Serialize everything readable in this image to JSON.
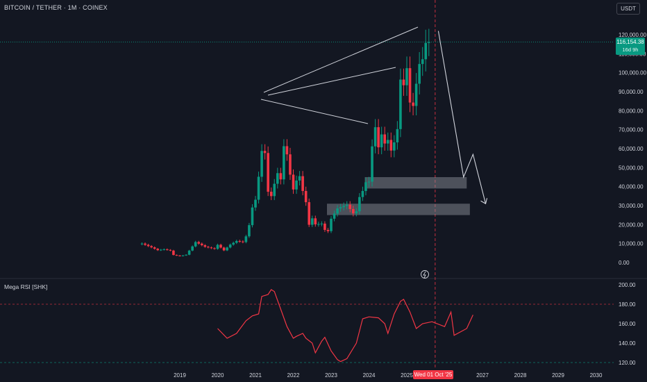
{
  "header": {
    "ticker": "BITCOIN / TETHER · 1M · COINEX",
    "currency": "USDT"
  },
  "price_tag": {
    "price": "116,154.38",
    "countdown": "16d 9h",
    "color": "#089981"
  },
  "crosshair_date": "Wed 01 Oct '25",
  "rsi_panel_title": "Mega RSI [SHK]",
  "colors": {
    "background": "#131722",
    "up": "#089981",
    "down": "#f23645",
    "rsi_line": "#f23645",
    "zone": "#9598a1",
    "drawing": "#d1d4dc"
  },
  "chart_data": [
    {
      "type": "candlestick",
      "title": "BITCOIN / TETHER · 1M · COINEX",
      "interval": "1M",
      "y_ticks": [
        0,
        10000,
        20000,
        30000,
        40000,
        50000,
        60000,
        70000,
        80000,
        90000,
        100000,
        110000,
        120000
      ],
      "y_tick_labels": [
        "0.00",
        "10,000.00",
        "20,000.00",
        "30,000.00",
        "40,000.00",
        "50,000.00",
        "60,000.00",
        "70,000.00",
        "80,000.00",
        "90,000.00",
        "100,000.00",
        "110,000.00",
        "120,000.00"
      ],
      "ylim": [
        0,
        130000
      ],
      "x_tick_labels": [
        "2019",
        "2020",
        "2021",
        "2022",
        "2023",
        "2024",
        "2025",
        "2027",
        "2028",
        "2029",
        "2030"
      ],
      "current_price": 116154.38,
      "anchors": [
        [
          "2018-01",
          10000
        ],
        [
          "2018-04",
          8000
        ],
        [
          "2018-06",
          6500
        ],
        [
          "2018-08",
          7000
        ],
        [
          "2018-10",
          6300
        ],
        [
          "2018-11",
          4000
        ],
        [
          "2019-01",
          3400
        ],
        [
          "2019-03",
          4100
        ],
        [
          "2019-05",
          8500
        ],
        [
          "2019-06",
          10800
        ],
        [
          "2019-09",
          8300
        ],
        [
          "2019-12",
          7200
        ],
        [
          "2020-01",
          9350
        ],
        [
          "2020-03",
          6400
        ],
        [
          "2020-05",
          9450
        ],
        [
          "2020-07",
          11350
        ],
        [
          "2020-09",
          10800
        ],
        [
          "2020-10",
          13800
        ],
        [
          "2020-11",
          19700
        ],
        [
          "2020-12",
          29000
        ],
        [
          "2021-01",
          33100
        ],
        [
          "2021-02",
          45200
        ],
        [
          "2021-03",
          58800
        ],
        [
          "2021-04",
          57700
        ],
        [
          "2021-05",
          37300
        ],
        [
          "2021-06",
          35000
        ],
        [
          "2021-07",
          41500
        ],
        [
          "2021-08",
          47100
        ],
        [
          "2021-09",
          43800
        ],
        [
          "2021-10",
          61300
        ],
        [
          "2021-11",
          57000
        ],
        [
          "2021-12",
          46300
        ],
        [
          "2022-01",
          38500
        ],
        [
          "2022-02",
          43200
        ],
        [
          "2022-03",
          45500
        ],
        [
          "2022-04",
          37700
        ],
        [
          "2022-05",
          31800
        ],
        [
          "2022-06",
          19900
        ],
        [
          "2022-07",
          23300
        ],
        [
          "2022-08",
          20100
        ],
        [
          "2022-10",
          20500
        ],
        [
          "2022-11",
          17200
        ],
        [
          "2022-12",
          16550
        ],
        [
          "2023-01",
          23100
        ],
        [
          "2023-03",
          28500
        ],
        [
          "2023-06",
          30500
        ],
        [
          "2023-08",
          25900
        ],
        [
          "2023-09",
          27000
        ],
        [
          "2023-10",
          34500
        ],
        [
          "2023-11",
          37700
        ],
        [
          "2023-12",
          42300
        ],
        [
          "2024-01",
          42600
        ],
        [
          "2024-02",
          61200
        ],
        [
          "2024-03",
          71300
        ],
        [
          "2024-04",
          60700
        ],
        [
          "2024-05",
          67500
        ],
        [
          "2024-06",
          62700
        ],
        [
          "2024-07",
          64600
        ],
        [
          "2024-08",
          59000
        ],
        [
          "2024-09",
          63300
        ],
        [
          "2024-10",
          70300
        ],
        [
          "2024-11",
          96400
        ],
        [
          "2024-12",
          93400
        ],
        [
          "2025-01",
          102400
        ],
        [
          "2025-02",
          84300
        ],
        [
          "2025-03",
          82500
        ],
        [
          "2025-04",
          94200
        ],
        [
          "2025-05",
          104600
        ],
        [
          "2025-06",
          107100
        ],
        [
          "2025-07",
          115700
        ],
        [
          "2025-08",
          116154
        ]
      ],
      "zones": [
        {
          "from": "2024-01",
          "to": "2026-08",
          "low": 39000,
          "high": 45000
        },
        {
          "from": "2023-01",
          "to": "2026-09",
          "low": 25000,
          "high": 31000
        }
      ],
      "projection": [
        [
          "2025-11",
          122000
        ],
        [
          "2026-07",
          45000
        ],
        [
          "2026-10",
          57000
        ],
        [
          "2027-02",
          31000
        ]
      ]
    },
    {
      "type": "line",
      "title": "Mega RSI [SHK]",
      "y_ticks": [
        120,
        140,
        160,
        180,
        200
      ],
      "y_tick_labels": [
        "120.00",
        "140.00",
        "160.00",
        "180.00",
        "200.00"
      ],
      "ylim": [
        117,
        205
      ],
      "reference_lines": [
        180,
        120
      ],
      "series": [
        {
          "values": [
            [
              "2020-01",
              155
            ],
            [
              "2020-04",
              145
            ],
            [
              "2020-07",
              150
            ],
            [
              "2020-10",
              163
            ],
            [
              "2020-12",
              168
            ],
            [
              "2021-02",
              170
            ],
            [
              "2021-03",
              188
            ],
            [
              "2021-05",
              190
            ],
            [
              "2021-06",
              195
            ],
            [
              "2021-07",
              193
            ],
            [
              "2021-09",
              175
            ],
            [
              "2021-11",
              157
            ],
            [
              "2022-01",
              145
            ],
            [
              "2022-02",
              147
            ],
            [
              "2022-04",
              150
            ],
            [
              "2022-05",
              145
            ],
            [
              "2022-07",
              140
            ],
            [
              "2022-08",
              130
            ],
            [
              "2022-10",
              142
            ],
            [
              "2022-11",
              146
            ],
            [
              "2023-01",
              132
            ],
            [
              "2023-03",
              123
            ],
            [
              "2023-04",
              121
            ],
            [
              "2023-06",
              124
            ],
            [
              "2023-09",
              140
            ],
            [
              "2023-11",
              165
            ],
            [
              "2024-01",
              167
            ],
            [
              "2024-04",
              166
            ],
            [
              "2024-06",
              160
            ],
            [
              "2024-07",
              150
            ],
            [
              "2024-09",
              170
            ],
            [
              "2024-11",
              183
            ],
            [
              "2024-12",
              185
            ],
            [
              "2025-02",
              172
            ],
            [
              "2025-04",
              155
            ],
            [
              "2025-06",
              160
            ],
            [
              "2025-09",
              162
            ],
            [
              "2026-01",
              157
            ],
            [
              "2026-03",
              172
            ],
            [
              "2026-04",
              148
            ],
            [
              "2026-08",
              155
            ],
            [
              "2026-10",
              169
            ]
          ]
        }
      ]
    }
  ]
}
